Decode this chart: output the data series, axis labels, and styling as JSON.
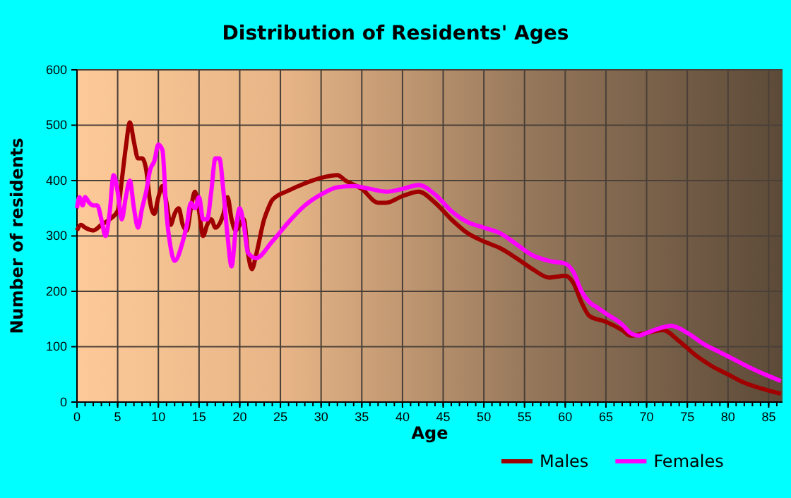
{
  "chart_data": {
    "type": "line",
    "title": "Distribution of Residents' Ages",
    "xlabel": "Age",
    "ylabel": "Number of residents",
    "xlim": [
      0,
      86.7
    ],
    "xticks": [
      0,
      5,
      10,
      15,
      20,
      25,
      30,
      35,
      40,
      45,
      50,
      55,
      60,
      65,
      70,
      75,
      80,
      85
    ],
    "ylim": [
      0,
      600
    ],
    "yticks": [
      0,
      100,
      200,
      300,
      400,
      500,
      600
    ],
    "grid": true,
    "legend": "bottom",
    "line_style": "solid",
    "marker": "none",
    "series": [
      {
        "name": "Males",
        "color": "#a00000",
        "x": [
          0,
          0.5,
          1,
          2,
          3,
          4,
          5,
          5.5,
          6,
          6.5,
          7,
          7.5,
          8,
          8.5,
          9,
          9.5,
          10,
          10.5,
          11,
          11.5,
          12,
          12.5,
          13,
          13.5,
          14,
          14.5,
          15,
          15.5,
          16,
          16.5,
          17,
          18,
          18.5,
          19,
          19.5,
          20,
          20.5,
          21,
          21.5,
          22,
          23,
          23.5,
          24,
          26,
          28,
          30,
          32,
          33,
          35,
          37,
          38,
          40,
          42,
          44,
          46,
          48,
          50,
          52,
          54,
          56,
          58,
          60,
          61,
          62,
          63,
          65,
          67,
          68,
          70,
          72,
          74,
          76,
          78,
          80,
          82,
          84,
          86.5
        ],
        "values": [
          310,
          320,
          315,
          310,
          320,
          330,
          345,
          400,
          460,
          505,
          470,
          440,
          440,
          420,
          360,
          340,
          370,
          390,
          360,
          320,
          340,
          350,
          320,
          310,
          350,
          380,
          345,
          300,
          320,
          330,
          315,
          340,
          370,
          330,
          310,
          320,
          330,
          270,
          240,
          265,
          330,
          350,
          365,
          382,
          395,
          405,
          410,
          400,
          385,
          360,
          360,
          372,
          380,
          360,
          330,
          305,
          290,
          278,
          260,
          240,
          225,
          228,
          215,
          180,
          155,
          145,
          130,
          120,
          125,
          130,
          110,
          85,
          65,
          50,
          35,
          25,
          15
        ]
      },
      {
        "name": "Females",
        "color": "#ff00ff",
        "x": [
          0,
          0.3,
          0.7,
          1,
          1.5,
          2,
          2.5,
          3,
          3.5,
          4,
          4.5,
          5,
          5.5,
          6,
          6.5,
          7,
          7.5,
          8,
          8.5,
          9,
          9.5,
          10,
          10.5,
          11,
          11.5,
          12,
          13,
          13.5,
          14,
          14.5,
          15,
          15.5,
          16,
          16.5,
          17,
          17.5,
          18,
          18.5,
          19,
          19.5,
          20,
          20.5,
          21,
          22,
          24,
          26,
          28,
          30,
          32,
          34,
          36,
          38,
          40,
          42,
          44,
          46,
          48,
          50,
          52,
          54,
          56,
          58,
          60,
          61,
          62,
          63,
          64,
          65,
          67,
          68,
          69,
          70,
          72,
          73,
          75,
          77,
          79,
          81,
          83,
          85,
          86.5
        ],
        "values": [
          350,
          370,
          355,
          370,
          360,
          355,
          355,
          330,
          300,
          340,
          410,
          380,
          330,
          370,
          400,
          350,
          315,
          350,
          380,
          420,
          435,
          465,
          455,
          340,
          280,
          255,
          290,
          320,
          360,
          350,
          370,
          330,
          330,
          380,
          440,
          440,
          380,
          300,
          245,
          310,
          350,
          320,
          270,
          260,
          290,
          325,
          355,
          375,
          388,
          390,
          385,
          380,
          385,
          392,
          375,
          345,
          325,
          315,
          305,
          285,
          265,
          255,
          250,
          235,
          200,
          180,
          170,
          160,
          140,
          125,
          120,
          125,
          135,
          138,
          125,
          105,
          90,
          75,
          60,
          47,
          38
        ]
      }
    ]
  }
}
